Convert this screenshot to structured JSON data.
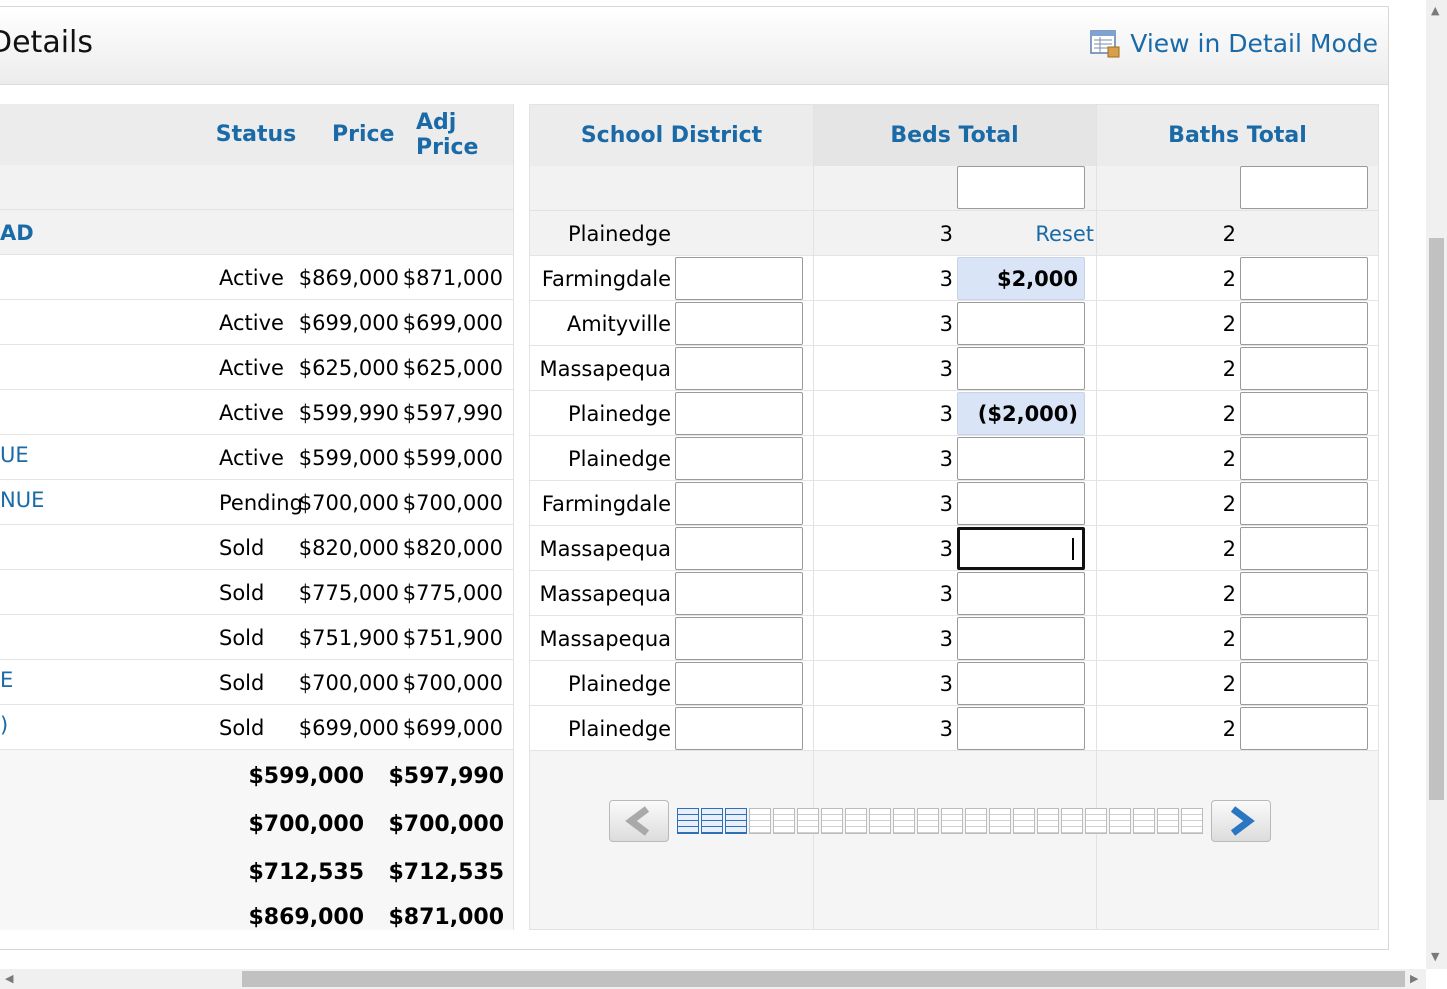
{
  "header": {
    "title": "Details",
    "detail_link": "View in Detail Mode"
  },
  "columns": {
    "status": "Status",
    "price": "Price",
    "adj_price": "Adj Price",
    "school": "School District",
    "beds": "Beds Total",
    "baths": "Baths Total"
  },
  "group_row": {
    "address": "AD",
    "school": "Plainedge",
    "beds": "3",
    "reset": "Reset",
    "baths": "2"
  },
  "rows": [
    {
      "address": "",
      "status": "Active",
      "price": "$869,000",
      "adj": "$871,000",
      "school": "Farmingdale",
      "beds": "3",
      "adjust": "$2,000",
      "baths": "2"
    },
    {
      "address": "",
      "status": "Active",
      "price": "$699,000",
      "adj": "$699,000",
      "school": "Amityville",
      "beds": "3",
      "adjust": "",
      "baths": "2"
    },
    {
      "address": "",
      "status": "Active",
      "price": "$625,000",
      "adj": "$625,000",
      "school": "Massapequa",
      "beds": "3",
      "adjust": "",
      "baths": "2"
    },
    {
      "address": "",
      "status": "Active",
      "price": "$599,990",
      "adj": "$597,990",
      "school": "Plainedge",
      "beds": "3",
      "adjust": "($2,000)",
      "baths": "2"
    },
    {
      "address": "UE",
      "status": "Active",
      "price": "$599,000",
      "adj": "$599,000",
      "school": "Plainedge",
      "beds": "3",
      "adjust": "",
      "baths": "2"
    },
    {
      "address": "NUE",
      "status": "Pending",
      "price": "$700,000",
      "adj": "$700,000",
      "school": "Farmingdale",
      "beds": "3",
      "adjust": "",
      "baths": "2"
    },
    {
      "address": "",
      "status": "Sold",
      "price": "$820,000",
      "adj": "$820,000",
      "school": "Massapequa",
      "beds": "3",
      "adjust": "",
      "baths": "2"
    },
    {
      "address": "",
      "status": "Sold",
      "price": "$775,000",
      "adj": "$775,000",
      "school": "Massapequa",
      "beds": "3",
      "adjust": "",
      "baths": "2"
    },
    {
      "address": "",
      "status": "Sold",
      "price": "$751,900",
      "adj": "$751,900",
      "school": "Massapequa",
      "beds": "3",
      "adjust": "",
      "baths": "2"
    },
    {
      "address": "E",
      "status": "Sold",
      "price": "$700,000",
      "adj": "$700,000",
      "school": "Plainedge",
      "beds": "3",
      "adjust": "",
      "baths": "2"
    },
    {
      "address": ")",
      "status": "Sold",
      "price": "$699,000",
      "adj": "$699,000",
      "school": "Plainedge",
      "beds": "3",
      "adjust": "",
      "baths": "2"
    }
  ],
  "totals": [
    {
      "price": "$599,000",
      "adj": "$597,990"
    },
    {
      "price": "$700,000",
      "adj": "$700,000"
    },
    {
      "price": "$712,535",
      "adj": "$712,535"
    },
    {
      "price": "$869,000",
      "adj": "$871,000"
    }
  ],
  "pager": {
    "total_pages": 22,
    "active_pages": 3
  },
  "colors": {
    "link": "#1a6aa8",
    "highlight": "#d9e4f7"
  },
  "icons": {
    "detail": "table-doc-icon",
    "prev": "chevron-left-icon",
    "next": "chevron-right-icon"
  }
}
